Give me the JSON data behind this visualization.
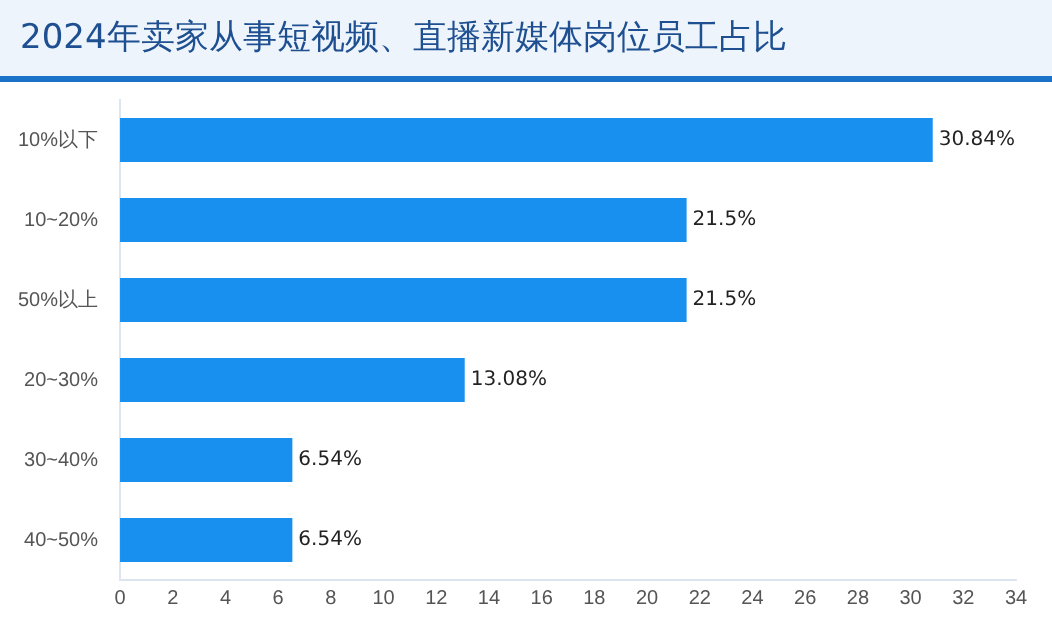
{
  "chart_data": {
    "type": "bar",
    "orientation": "horizontal",
    "title": "2024年卖家从事短视频、直播新媒体岗位员工占比",
    "categories": [
      "10%以下",
      "10~20%",
      "50%以上",
      "20~30%",
      "30~40%",
      "40~50%"
    ],
    "values": [
      30.84,
      21.5,
      21.5,
      13.08,
      6.54,
      6.54
    ],
    "value_labels": [
      "30.84%",
      "21.5%",
      "21.5%",
      "13.08%",
      "6.54%",
      "6.54%"
    ],
    "color": "#1890f0",
    "xlim": [
      0,
      34
    ],
    "xticks": [
      0,
      2,
      4,
      6,
      8,
      10,
      12,
      14,
      16,
      18,
      20,
      22,
      24,
      26,
      28,
      30,
      32,
      34
    ],
    "grid": false,
    "legend": false
  }
}
